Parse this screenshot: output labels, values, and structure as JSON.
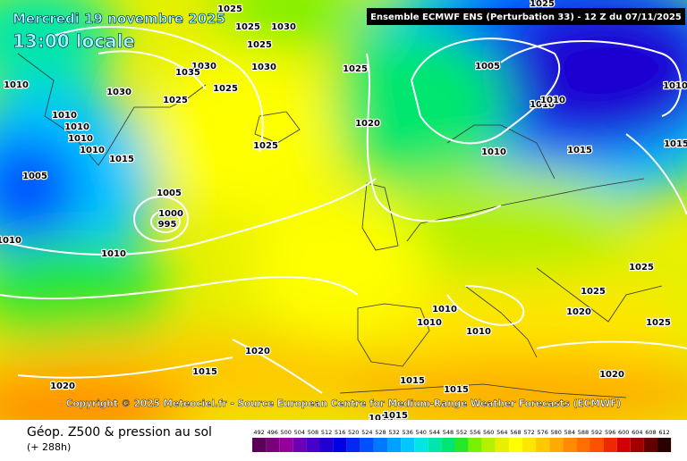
{
  "header": {
    "date": "Mercredi 19 novembre 2025",
    "time": "13:00 locale",
    "run": "Ensemble ECMWF ENS  (Perturbation 33)  -  12 Z du 07/11/2025"
  },
  "isobar_labels": [
    "1025",
    "1025",
    "1030",
    "1025",
    "1030",
    "1035",
    "1030",
    "1025",
    "1030",
    "1025",
    "1010",
    "1010",
    "1010",
    "1010",
    "1010",
    "1015",
    "1025",
    "1025",
    "1020",
    "1005",
    "1010",
    "1010",
    "1010",
    "1010",
    "1015",
    "1015",
    "1025",
    "1005",
    "1005",
    "1000",
    "995",
    "1010",
    "1010",
    "1025",
    "1025",
    "1020",
    "1025",
    "1010",
    "1010",
    "1010",
    "1020",
    "1015",
    "1020",
    "1015",
    "1015",
    "1020",
    "1015",
    "1015"
  ],
  "copyright": "Copyright © 2025 Meteociel.fr - Source European Centre for Medium-Range Weather Forecasts (ECMWF)",
  "legend": {
    "title": "Géop. Z500 & pression au sol",
    "subtitle": "(+ 288h)",
    "scale": [
      "492",
      "496",
      "500",
      "504",
      "508",
      "512",
      "516",
      "520",
      "524",
      "528",
      "532",
      "536",
      "540",
      "544",
      "548",
      "552",
      "556",
      "560",
      "564",
      "568",
      "572",
      "576",
      "580",
      "584",
      "588",
      "592",
      "596",
      "600",
      "604",
      "608",
      "612"
    ],
    "colors": [
      "#5a005a",
      "#780078",
      "#96009a",
      "#6e00b4",
      "#4600c8",
      "#1e00d2",
      "#0000e6",
      "#0028f0",
      "#0050ff",
      "#0078ff",
      "#00a0ff",
      "#00c8ff",
      "#00e6e6",
      "#00e6aa",
      "#00e66e",
      "#28e628",
      "#78f000",
      "#b4f000",
      "#e6f000",
      "#ffff00",
      "#ffe600",
      "#ffc800",
      "#ffaa00",
      "#ff8c00",
      "#ff6e00",
      "#ff5000",
      "#f02800",
      "#d20000",
      "#a00000",
      "#640000",
      "#280000"
    ]
  }
}
